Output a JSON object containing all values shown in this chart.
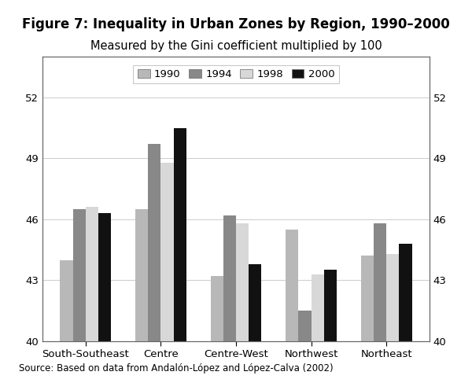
{
  "title": "Figure 7: Inequality in Urban Zones by Region, 1990–2000",
  "subtitle": "Measured by the Gini coefficient multiplied by 100",
  "source": "Source: Based on data from Andalón-López and López-Calva (2002)",
  "categories": [
    "South-Southeast",
    "Centre",
    "Centre-West",
    "Northwest",
    "Northeast"
  ],
  "years": [
    "1990",
    "1994",
    "1998",
    "2000"
  ],
  "data": {
    "1990": [
      44.0,
      46.5,
      43.2,
      45.5,
      44.2
    ],
    "1994": [
      46.5,
      49.7,
      46.2,
      41.5,
      45.8
    ],
    "1998": [
      46.6,
      48.8,
      45.8,
      43.3,
      44.3
    ],
    "2000": [
      46.3,
      50.5,
      43.8,
      43.5,
      44.8
    ]
  },
  "colors": {
    "1990": "#b8b8b8",
    "1994": "#888888",
    "1998": "#d8d8d8",
    "2000": "#111111"
  },
  "ylim": [
    40,
    54
  ],
  "yticks": [
    40,
    43,
    46,
    49,
    52
  ],
  "bar_width": 0.17,
  "background_color": "#ffffff",
  "title_fontsize": 12,
  "subtitle_fontsize": 10.5
}
